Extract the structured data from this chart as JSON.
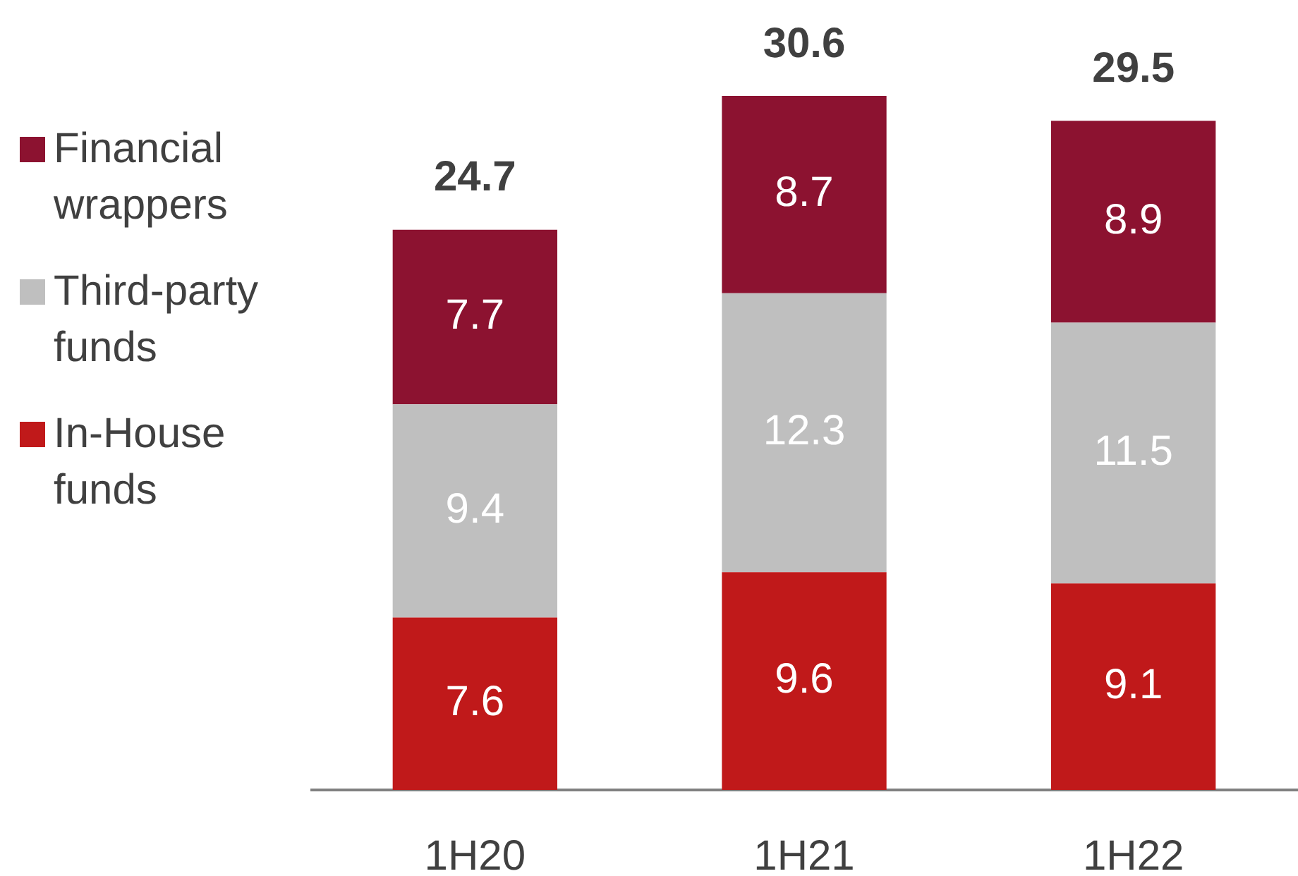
{
  "chart_data": {
    "type": "bar",
    "stacked": true,
    "data_labels": true,
    "legend": "left",
    "grid": false,
    "categories": [
      "1H20",
      "1H21",
      "1H22"
    ],
    "series": [
      {
        "name": "In-House funds",
        "color": "#c0191a",
        "values": [
          7.6,
          9.6,
          9.1
        ]
      },
      {
        "name": "Third-party funds",
        "color": "#bfbfbf",
        "values": [
          9.4,
          12.3,
          11.5
        ]
      },
      {
        "name": "Financial wrappers",
        "color": "#8c1230",
        "values": [
          7.7,
          8.7,
          8.9
        ]
      }
    ],
    "totals": [
      "24.7",
      "30.6",
      "29.5"
    ]
  }
}
